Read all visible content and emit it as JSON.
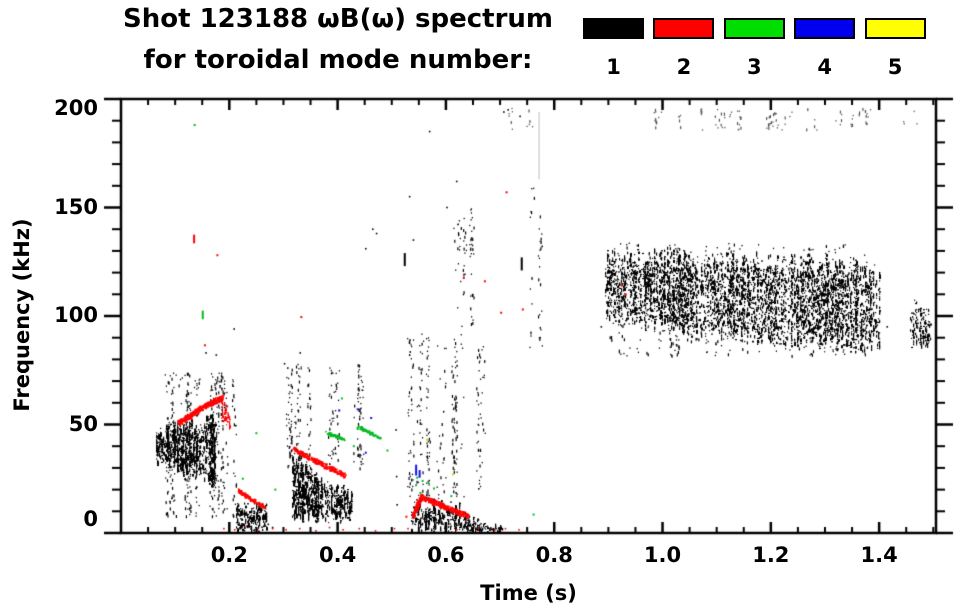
{
  "header": {
    "title": "Shot 123188 ωB(ω) spectrum",
    "subtitle": "for toroidal mode number:"
  },
  "legend": {
    "items": [
      {
        "label": "1",
        "color": "#000000"
      },
      {
        "label": "2",
        "color": "#ff0000"
      },
      {
        "label": "3",
        "color": "#00dd00"
      },
      {
        "label": "4",
        "color": "#0000ee"
      },
      {
        "label": "5",
        "color": "#ffff00"
      }
    ]
  },
  "chart_data": {
    "type": "scatter",
    "title": "Shot 123188 ωB(ω) spectrum for toroidal mode number: 1 2 3 4 5",
    "xlabel": "Time (s)",
    "ylabel": "Frequency (kHz)",
    "xlim": [
      0,
      1.505
    ],
    "ylim": [
      0,
      200
    ],
    "xticks": {
      "values": [
        0.2,
        0.4,
        0.6,
        0.8,
        1.0,
        1.2,
        1.4
      ],
      "labels": [
        "0.2",
        "0.4",
        "0.6",
        "0.8",
        "1.0",
        "1.2",
        "1.4"
      ],
      "minor_step": 0.05
    },
    "yticks": {
      "values": [
        0,
        50,
        100,
        150,
        200
      ],
      "labels": [
        "0",
        "50",
        "100",
        "150",
        "200"
      ],
      "minor_step": 10
    },
    "mode_colors": {
      "1": "#000000",
      "2": "#ff0000",
      "3": "#00bb22",
      "4": "#1111ee",
      "5": "#ddcc00"
    },
    "features": [
      {
        "id": "n1-burst1-core",
        "mode": 1,
        "type": "hband",
        "t0": 0.065,
        "t1": 0.175,
        "ftop0": 47,
        "ftop1": 53,
        "fbot0": 34,
        "fbot1": 23,
        "density": 0.5,
        "rough": 4,
        "dash": 6,
        "seed": 11
      },
      {
        "id": "n1-burst1-halo",
        "mode": 1,
        "type": "speckle",
        "t0": 0.08,
        "t1": 0.21,
        "f0": 8,
        "f1": 74,
        "n": 380,
        "columnar": true,
        "cols": 26,
        "seed": 12
      },
      {
        "id": "n2-chirp1",
        "mode": 2,
        "type": "streak",
        "pts": [
          [
            0.105,
            51
          ],
          [
            0.145,
            57.5
          ],
          [
            0.186,
            63
          ]
        ],
        "width": 2.2,
        "density": 2.0,
        "size": 1.6,
        "seed": 13
      },
      {
        "id": "n2-chirp1-end",
        "mode": 2,
        "type": "hband",
        "t0": 0.184,
        "t1": 0.2,
        "ftop0": 63,
        "ftop1": 55,
        "fbot0": 53,
        "fbot1": 47,
        "density": 0.42,
        "rough": 2,
        "dash": 4,
        "seed": 14
      },
      {
        "id": "n1-burst2",
        "mode": 1,
        "type": "hband",
        "t0": 0.212,
        "t1": 0.268,
        "ftop0": 13.5,
        "ftop1": 11,
        "fbot0": 2,
        "fbot1": 1.5,
        "density": 0.45,
        "rough": 3,
        "dash": 5,
        "seed": 15
      },
      {
        "id": "n2-burst2",
        "mode": 2,
        "type": "streak",
        "pts": [
          [
            0.214,
            20
          ],
          [
            0.262,
            12.5
          ]
        ],
        "width": 1.6,
        "density": 1.3,
        "size": 1.5,
        "seed": 16
      },
      {
        "id": "n1-burst3a",
        "mode": 1,
        "type": "hband",
        "t0": 0.315,
        "t1": 0.353,
        "ftop0": 35,
        "ftop1": 30,
        "fbot0": 9,
        "fbot1": 7,
        "density": 0.47,
        "rough": 5,
        "dash": 6,
        "seed": 17
      },
      {
        "id": "n1-burst3b",
        "mode": 1,
        "type": "hband",
        "t0": 0.353,
        "t1": 0.425,
        "ftop0": 26,
        "ftop1": 17,
        "fbot0": 6,
        "fbot1": 8,
        "density": 0.44,
        "rough": 4,
        "dash": 6,
        "seed": 18
      },
      {
        "id": "n1-burst3-halo",
        "mode": 1,
        "type": "speckle",
        "t0": 0.305,
        "t1": 0.45,
        "f0": 30,
        "f1": 78,
        "n": 200,
        "columnar": true,
        "cols": 16,
        "seed": 19
      },
      {
        "id": "n2-chirp3",
        "mode": 2,
        "type": "streak",
        "pts": [
          [
            0.317,
            39
          ],
          [
            0.362,
            33
          ],
          [
            0.412,
            27
          ]
        ],
        "width": 2.0,
        "density": 1.5,
        "size": 1.5,
        "seed": 20
      },
      {
        "id": "n3-streak3a",
        "mode": 3,
        "type": "streak",
        "pts": [
          [
            0.378,
            46.5
          ],
          [
            0.412,
            43.5
          ]
        ],
        "width": 1.3,
        "density": 1.1,
        "size": 1.5,
        "seed": 21
      },
      {
        "id": "n3-streak3b",
        "mode": 3,
        "type": "streak",
        "pts": [
          [
            0.437,
            49
          ],
          [
            0.478,
            44
          ]
        ],
        "width": 1.3,
        "density": 0.8,
        "size": 1.5,
        "seed": 22
      },
      {
        "id": "n3-dots-mid",
        "mode": 3,
        "type": "dots",
        "size": 2,
        "pts": [
          [
            0.25,
            46
          ],
          [
            0.225,
            25
          ],
          [
            0.285,
            20
          ],
          [
            0.43,
            40
          ],
          [
            0.492,
            38
          ],
          [
            0.408,
            62
          ],
          [
            0.136,
            188
          ]
        ]
      },
      {
        "id": "n4-dots-mid",
        "mode": 4,
        "type": "dots",
        "size": 2,
        "pts": [
          [
            0.403,
            56.5
          ],
          [
            0.437,
            57
          ],
          [
            0.462,
            53
          ],
          [
            0.452,
            37
          ]
        ]
      },
      {
        "id": "n1-burst4-core",
        "mode": 1,
        "type": "hband",
        "t0": 0.535,
        "t1": 0.625,
        "ftop0": 14,
        "ftop1": 12,
        "fbot0": 2.5,
        "fbot1": 2,
        "density": 0.5,
        "rough": 4,
        "dash": 6,
        "seed": 23
      },
      {
        "id": "n1-burst4-tail",
        "mode": 1,
        "type": "hband",
        "t0": 0.625,
        "t1": 0.705,
        "ftop0": 9,
        "ftop1": 2.5,
        "fbot0": 1.5,
        "fbot1": 0.8,
        "density": 0.45,
        "rough": 2,
        "dash": 4,
        "seed": 24
      },
      {
        "id": "n1-burst4-halo",
        "mode": 1,
        "type": "speckle",
        "t0": 0.53,
        "t1": 0.67,
        "f0": 16,
        "f1": 92,
        "n": 240,
        "columnar": true,
        "cols": 18,
        "seed": 25
      },
      {
        "id": "n2-chirp4",
        "mode": 2,
        "type": "streak",
        "pts": [
          [
            0.538,
            8
          ],
          [
            0.553,
            17
          ],
          [
            0.6,
            12
          ],
          [
            0.641,
            8
          ]
        ],
        "width": 2.2,
        "density": 1.7,
        "size": 1.5,
        "seed": 26
      },
      {
        "id": "n3-dots-burst4",
        "mode": 3,
        "type": "dots",
        "size": 2,
        "pts": [
          [
            0.545,
            22
          ],
          [
            0.553,
            18.5
          ],
          [
            0.557,
            24
          ],
          [
            0.568,
            23
          ],
          [
            0.578,
            20.5
          ],
          [
            0.61,
            17
          ],
          [
            0.547,
            25.5
          ],
          [
            0.762,
            8.5
          ]
        ]
      },
      {
        "id": "n4-dashes-burst4",
        "mode": 4,
        "type": "dashes",
        "w": 2,
        "segs": [
          [
            0.545,
            26.5,
            31.5
          ],
          [
            0.5515,
            25.5,
            29
          ]
        ]
      },
      {
        "id": "n5-dots",
        "mode": 5,
        "type": "dots",
        "size": 2,
        "pts": [
          [
            0.565,
            43
          ],
          [
            0.613,
            27
          ]
        ]
      },
      {
        "id": "n1-column-specks",
        "mode": 1,
        "type": "speckle",
        "t0": 0.595,
        "t1": 0.65,
        "f0": 95,
        "f1": 150,
        "n": 55,
        "columnar": true,
        "cols": 6,
        "seed": 27
      },
      {
        "id": "top-specks-late",
        "mode": 1,
        "type": "speckle",
        "t0": 0.97,
        "t1": 1.49,
        "f0": 186,
        "f1": 196,
        "n": 85,
        "columnar": true,
        "cols": 30,
        "seed": 28,
        "color": "#555555"
      },
      {
        "id": "top-specks-early",
        "mode": 1,
        "type": "speckle",
        "t0": 0.7,
        "t1": 0.78,
        "f0": 186,
        "f1": 196,
        "n": 16,
        "columnar": true,
        "cols": 5,
        "seed": 29,
        "color": "#555555"
      },
      {
        "id": "faint-vline",
        "type": "vline",
        "t": 0.772,
        "f0": 163,
        "f1": 194,
        "color": "#aaaaaa"
      },
      {
        "id": "specks-077",
        "mode": 1,
        "type": "speckle",
        "t0": 0.735,
        "t1": 0.78,
        "f0": 85,
        "f1": 160,
        "n": 26,
        "columnar": true,
        "cols": 4,
        "seed": 30
      },
      {
        "id": "n1-band-a",
        "mode": 1,
        "type": "hband",
        "t0": 0.893,
        "t1": 1.05,
        "ftop0": 127,
        "ftop1": 126,
        "fbot0": 101,
        "fbot1": 93,
        "density": 0.3,
        "rough": 6,
        "dash": 4,
        "seed": 31
      },
      {
        "id": "n1-band-b",
        "mode": 1,
        "type": "hband",
        "t0": 1.05,
        "t1": 1.4,
        "ftop0": 126,
        "ftop1": 122,
        "fbot0": 93,
        "fbot1": 85.5,
        "density": 0.3,
        "rough": 6,
        "dash": 4,
        "seed": 32
      },
      {
        "id": "n1-band-halo",
        "mode": 1,
        "type": "speckle",
        "t0": 0.9,
        "t1": 1.4,
        "f0": 82,
        "f1": 134,
        "n": 450,
        "columnar": true,
        "cols": 55,
        "seed": 33
      },
      {
        "id": "n1-band-right",
        "mode": 1,
        "type": "hband",
        "t0": 1.457,
        "t1": 1.494,
        "ftop0": 104,
        "ftop1": 102,
        "fbot0": 88,
        "fbot1": 87,
        "density": 0.3,
        "rough": 5,
        "dash": 4,
        "seed": 34
      },
      {
        "id": "n2-dots-high",
        "mode": 2,
        "type": "dots",
        "size": 2,
        "pts": [
          [
            0.178,
            128
          ],
          [
            0.155,
            86.5
          ],
          [
            0.333,
            99.5
          ],
          [
            0.633,
            117.5
          ],
          [
            0.672,
            116
          ],
          [
            0.702,
            101.5
          ],
          [
            0.712,
            157
          ],
          [
            0.742,
            103
          ],
          [
            0.925,
            114
          ],
          [
            0.932,
            110
          ],
          [
            0.527,
            7.5
          ]
        ]
      },
      {
        "id": "n2-dash-high",
        "mode": 2,
        "type": "dashes",
        "w": 2,
        "segs": [
          [
            0.135,
            133.5,
            137.5
          ]
        ]
      },
      {
        "id": "n3-dash-high",
        "mode": 3,
        "type": "dashes",
        "w": 2,
        "segs": [
          [
            0.151,
            98.5,
            102.5
          ]
        ]
      },
      {
        "id": "n1-dashes",
        "mode": 1,
        "type": "dashes",
        "w": 2,
        "segs": [
          [
            0.524,
            123,
            129
          ],
          [
            0.74,
            121,
            127
          ]
        ]
      },
      {
        "id": "n1-dots-misc",
        "mode": 1,
        "type": "dots",
        "size": 1.6,
        "pts": [
          [
            0.157,
            83
          ],
          [
            0.176,
            82
          ],
          [
            0.209,
            94
          ],
          [
            0.302,
            78
          ],
          [
            0.308,
            76
          ],
          [
            0.331,
            83
          ],
          [
            0.452,
            131
          ],
          [
            0.465,
            140
          ],
          [
            0.472,
            138
          ],
          [
            0.533,
            87.5
          ],
          [
            0.508,
            47.5
          ],
          [
            0.509,
            26
          ],
          [
            0.51,
            13
          ],
          [
            0.533,
            155
          ],
          [
            0.54,
            135
          ],
          [
            0.707,
            194
          ],
          [
            0.715,
            195
          ],
          [
            0.737,
            192
          ],
          [
            0.887,
            95
          ],
          [
            1.415,
            95
          ],
          [
            0.272,
            4
          ],
          [
            0.28,
            2.5
          ],
          [
            0.57,
            185
          ],
          [
            0.602,
            150
          ],
          [
            0.62,
            162
          ]
        ]
      },
      {
        "id": "n2-dots-bottom",
        "mode": 2,
        "type": "dots",
        "size": 1.6,
        "pts": [
          [
            0.19,
            2
          ],
          [
            0.21,
            1.5
          ],
          [
            0.23,
            2.5
          ],
          [
            0.253,
            1
          ],
          [
            0.28,
            2
          ],
          [
            0.305,
            1.5
          ],
          [
            0.33,
            2
          ],
          [
            0.36,
            1
          ],
          [
            0.385,
            2.5
          ],
          [
            0.41,
            1.5
          ],
          [
            0.44,
            2
          ],
          [
            0.47,
            1
          ],
          [
            0.505,
            2
          ],
          [
            0.53,
            2
          ],
          [
            0.62,
            1.5
          ],
          [
            0.66,
            2
          ],
          [
            0.69,
            1.2
          ],
          [
            0.71,
            2
          ],
          [
            0.735,
            1.5
          ]
        ]
      }
    ]
  }
}
